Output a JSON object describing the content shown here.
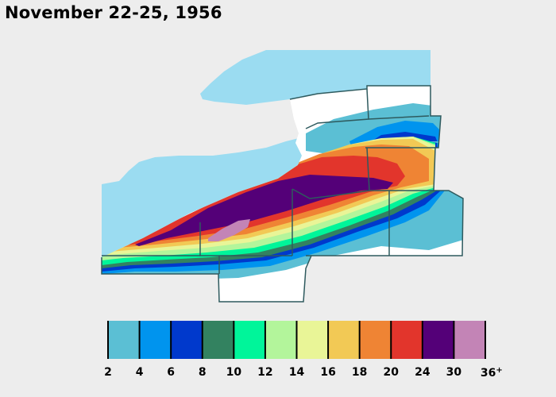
{
  "title": "November 22-25, 1956",
  "legend": {
    "bins": [
      {
        "from": 2,
        "to": 4,
        "color": "#5bbfd4"
      },
      {
        "from": 4,
        "to": 6,
        "color": "#0094ee"
      },
      {
        "from": 6,
        "to": 8,
        "color": "#0039cc"
      },
      {
        "from": 8,
        "to": 10,
        "color": "#338260"
      },
      {
        "from": 10,
        "to": 12,
        "color": "#00f59a"
      },
      {
        "from": 12,
        "to": 14,
        "color": "#b3f59b"
      },
      {
        "from": 14,
        "to": 16,
        "color": "#e9f597"
      },
      {
        "from": 16,
        "to": 18,
        "color": "#f2c955"
      },
      {
        "from": 18,
        "to": 20,
        "color": "#ef8434"
      },
      {
        "from": 20,
        "to": 24,
        "color": "#e2352c"
      },
      {
        "from": 24,
        "to": 30,
        "color": "#540078"
      },
      {
        "from": 30,
        "to": 36,
        "color": "#c384b6"
      }
    ],
    "tick_labels": [
      "2",
      "4",
      "6",
      "8",
      "10",
      "12",
      "14",
      "16",
      "18",
      "20",
      "24",
      "30",
      "36"
    ],
    "last_suffix": "+"
  },
  "colors": {
    "water": "#9bdcf1",
    "land": "#ffffff",
    "county_border": "#2e5a5e",
    "background": "#ededed"
  }
}
